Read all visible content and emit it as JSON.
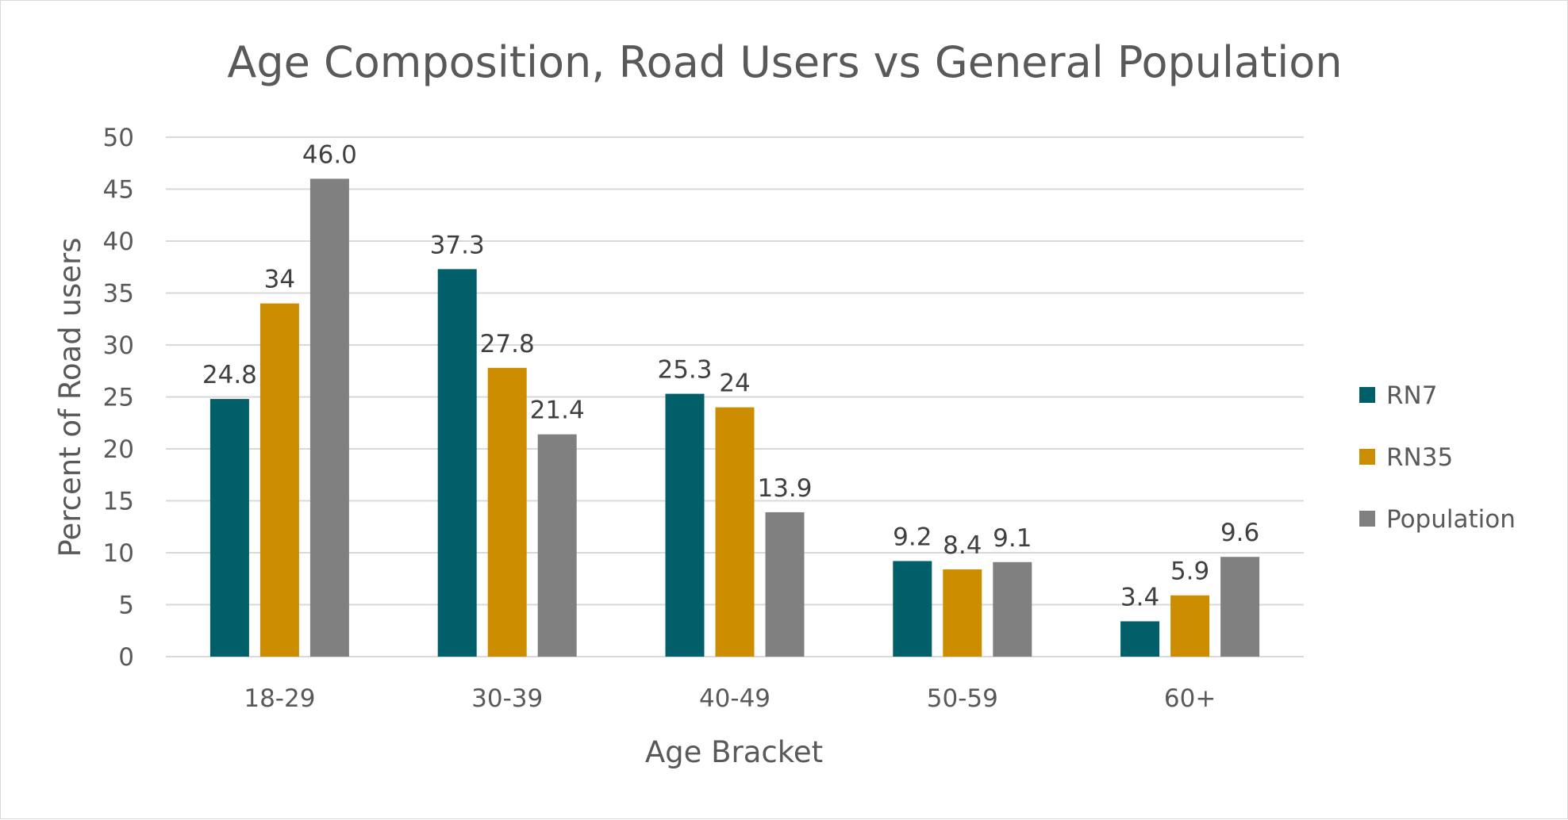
{
  "chart_data": {
    "type": "bar",
    "title": "Age Composition, Road Users vs General Population",
    "xlabel": "Age Bracket",
    "ylabel": "Percent of Road users",
    "categories": [
      "18-29",
      "30-39",
      "40-49",
      "50-59",
      "60+"
    ],
    "ylim": [
      0,
      50
    ],
    "yticks": [
      0,
      5,
      10,
      15,
      20,
      25,
      30,
      35,
      40,
      45,
      50
    ],
    "grid": true,
    "legend_position": "right",
    "series": [
      {
        "name": "RN7",
        "color": "#005F69",
        "values": [
          24.8,
          37.3,
          25.3,
          9.2,
          3.4
        ],
        "labels": [
          "24.8",
          "37.3",
          "25.3",
          "9.2",
          "3.4"
        ]
      },
      {
        "name": "RN35",
        "color": "#CC8E00",
        "values": [
          34,
          27.8,
          24,
          8.4,
          5.9
        ],
        "labels": [
          "34",
          "27.8",
          "24",
          "8.4",
          "5.9"
        ]
      },
      {
        "name": "Population",
        "color": "#808080",
        "values": [
          46.0,
          21.4,
          13.9,
          9.1,
          9.6
        ],
        "labels": [
          "46.0",
          "21.4",
          "13.9",
          "9.1",
          "9.6"
        ]
      }
    ]
  }
}
